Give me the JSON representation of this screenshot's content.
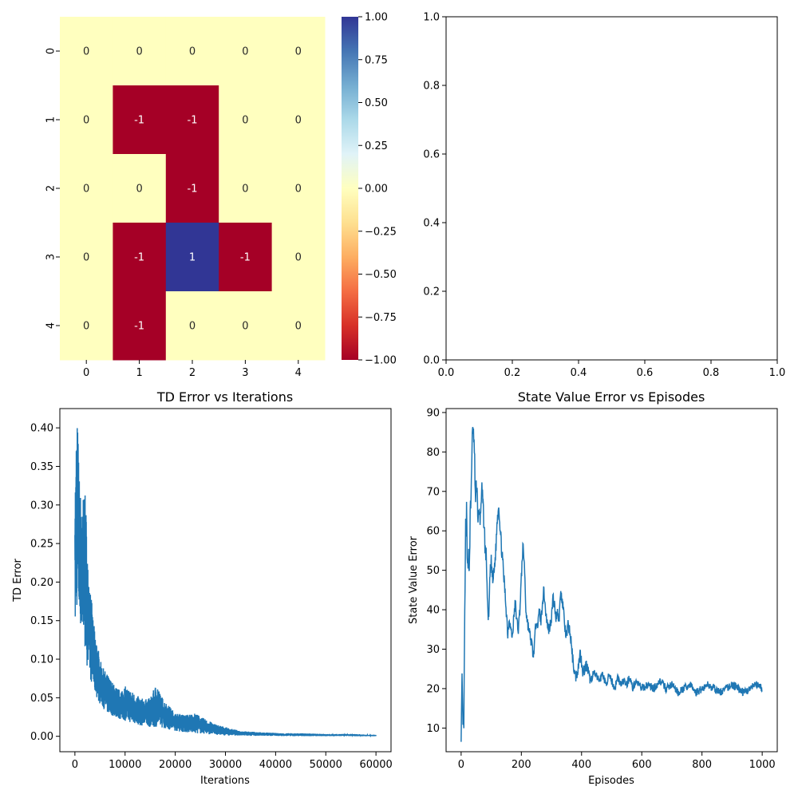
{
  "chart_data": [
    {
      "type": "heatmap",
      "title": "",
      "x_tick_labels": [
        "0",
        "1",
        "2",
        "3",
        "4"
      ],
      "y_tick_labels": [
        "0",
        "1",
        "2",
        "3",
        "4"
      ],
      "matrix": [
        [
          0,
          0,
          0,
          0,
          0
        ],
        [
          0,
          -1,
          -1,
          0,
          0
        ],
        [
          0,
          0,
          -1,
          0,
          0
        ],
        [
          0,
          -1,
          1,
          -1,
          0
        ],
        [
          0,
          -1,
          0,
          0,
          0
        ]
      ],
      "cell_labels": [
        [
          "0",
          "0",
          "0",
          "0",
          "0"
        ],
        [
          "0",
          "-1",
          "-1",
          "0",
          "0"
        ],
        [
          "0",
          "0",
          "-1",
          "0",
          "0"
        ],
        [
          "0",
          "-1",
          "1",
          "-1",
          "0"
        ],
        [
          "0",
          "-1",
          "0",
          "0",
          "0"
        ]
      ],
      "colormap": "RdYlBu",
      "vmin": -1,
      "vmax": 1,
      "colorbar_ticks": [
        "1.00",
        "0.75",
        "0.50",
        "0.25",
        "0.00",
        "−0.25",
        "−0.50",
        "−0.75",
        "−1.00"
      ],
      "colors": {
        "neg": "#a50026",
        "zero": "#ffffbf",
        "pos": "#313695"
      }
    },
    {
      "type": "line",
      "title": "",
      "xlim": [
        0,
        1
      ],
      "ylim": [
        0,
        1
      ],
      "x_ticks": [
        "0.0",
        "0.2",
        "0.4",
        "0.6",
        "0.8",
        "1.0"
      ],
      "y_ticks": [
        "0.0",
        "0.2",
        "0.4",
        "0.6",
        "0.8",
        "1.0"
      ],
      "series": []
    },
    {
      "type": "line",
      "title": "TD Error vs Iterations",
      "xlabel": "Iterations",
      "ylabel": "TD Error",
      "xlim": [
        -3000,
        63000
      ],
      "ylim": [
        -0.02,
        0.425
      ],
      "x_ticks": [
        "0",
        "10000",
        "20000",
        "30000",
        "40000",
        "50000",
        "60000"
      ],
      "y_ticks": [
        "0.00",
        "0.05",
        "0.10",
        "0.15",
        "0.20",
        "0.25",
        "0.30",
        "0.35",
        "0.40"
      ],
      "color": "#1f77b4",
      "series": [
        {
          "envelope": {
            "x": [
              0,
              150,
              300,
              500,
              700,
              900,
              1200,
              1500,
              1800,
              2200,
              2600,
              3000,
              3500,
              4000,
              4500,
              5000,
              5500,
              6000,
              6500,
              7000,
              8000,
              9000,
              10000,
              11000,
              12000,
              13000,
              14000,
              15000,
              16000,
              16500,
              17000,
              18000,
              19000,
              20000,
              22000,
              24000,
              26000,
              28000,
              30000,
              31000,
              33000,
              35000,
              38000,
              41000,
              45000,
              50000,
              55000,
              60000
            ],
            "low": [
              0.14,
              0.13,
              0.16,
              0.17,
              0.16,
              0.15,
              0.14,
              0.13,
              0.12,
              0.1,
              0.085,
              0.075,
              0.065,
              0.055,
              0.048,
              0.042,
              0.038,
              0.033,
              0.03,
              0.028,
              0.025,
              0.022,
              0.02,
              0.018,
              0.016,
              0.014,
              0.013,
              0.012,
              0.012,
              0.013,
              0.012,
              0.01,
              0.008,
              0.007,
              0.005,
              0.004,
              0.003,
              0.002,
              0.001,
              0.001,
              0.001,
              0.0005,
              0.0005,
              0.0003,
              0.0002,
              0.0001,
              0.0001,
              0.0001
            ],
            "high": [
              0.36,
              0.33,
              0.4,
              0.41,
              0.38,
              0.33,
              0.31,
              0.29,
              0.33,
              0.3,
              0.22,
              0.21,
              0.16,
              0.135,
              0.12,
              0.1,
              0.09,
              0.085,
              0.08,
              0.075,
              0.065,
              0.06,
              0.065,
              0.06,
              0.055,
              0.05,
              0.048,
              0.05,
              0.065,
              0.068,
              0.055,
              0.045,
              0.038,
              0.03,
              0.028,
              0.03,
              0.022,
              0.016,
              0.012,
              0.01,
              0.007,
              0.006,
              0.005,
              0.004,
              0.004,
              0.003,
              0.003,
              0.002
            ]
          }
        }
      ]
    },
    {
      "type": "line",
      "title": "State Value Error vs Episodes",
      "xlabel": "Episodes",
      "ylabel": "State Value Error",
      "xlim": [
        -50,
        1050
      ],
      "ylim": [
        4,
        91
      ],
      "x_ticks": [
        "0",
        "200",
        "400",
        "600",
        "800",
        "1000"
      ],
      "y_ticks": [
        "10",
        "20",
        "30",
        "40",
        "50",
        "60",
        "70",
        "80",
        "90"
      ],
      "color": "#1f77b4",
      "series": [
        {
          "x": [
            0,
            3,
            6,
            9,
            12,
            15,
            18,
            21,
            24,
            27,
            30,
            33,
            36,
            40,
            44,
            48,
            52,
            56,
            60,
            64,
            68,
            72,
            76,
            80,
            84,
            88,
            92,
            96,
            100,
            105,
            110,
            115,
            120,
            125,
            130,
            135,
            140,
            145,
            150,
            155,
            160,
            165,
            170,
            175,
            180,
            185,
            190,
            195,
            200,
            205,
            210,
            215,
            220,
            225,
            230,
            235,
            240,
            245,
            250,
            255,
            260,
            265,
            270,
            275,
            280,
            285,
            290,
            295,
            300,
            305,
            310,
            315,
            320,
            325,
            330,
            335,
            340,
            345,
            350,
            355,
            360,
            365,
            370,
            375,
            380,
            385,
            390,
            395,
            400,
            405,
            410,
            415,
            420,
            425,
            430,
            440,
            450,
            460,
            470,
            480,
            490,
            500,
            510,
            520,
            530,
            540,
            550,
            560,
            570,
            580,
            590,
            600,
            620,
            640,
            660,
            680,
            700,
            720,
            740,
            760,
            780,
            800,
            820,
            840,
            860,
            880,
            900,
            920,
            940,
            960,
            980,
            1000
          ],
          "y": [
            8,
            22,
            10.5,
            11,
            38,
            60,
            63,
            49,
            55,
            50,
            63,
            68,
            82,
            86,
            80,
            67,
            73,
            63,
            64,
            63,
            71,
            67,
            62,
            55,
            53,
            40,
            38,
            49,
            52,
            47,
            50,
            55,
            63,
            67,
            60,
            55,
            50,
            45,
            40,
            34,
            38,
            35,
            33,
            38,
            42,
            37,
            35,
            40,
            48,
            56,
            52,
            40,
            37,
            35,
            33,
            31,
            28,
            33,
            38,
            36,
            40,
            37,
            42,
            45,
            40,
            37,
            35,
            36,
            38,
            43,
            41,
            38,
            40,
            37,
            44,
            43,
            40,
            35,
            33,
            36,
            35,
            32,
            28,
            25,
            23,
            24,
            26,
            29,
            27,
            24,
            25,
            26,
            25,
            23,
            22,
            24,
            23,
            22,
            24,
            21,
            23,
            22,
            20,
            23,
            21,
            22,
            21,
            23,
            20,
            22,
            21,
            20,
            21,
            20,
            22,
            20,
            21,
            19,
            20,
            21,
            19,
            20,
            21,
            20,
            19,
            20,
            21,
            20,
            19,
            20,
            21,
            20
          ],
          "noise": [
            3,
            4,
            3,
            3,
            6,
            8,
            9,
            7,
            6,
            6,
            7,
            8,
            6,
            5,
            6,
            6,
            6,
            5,
            5,
            5,
            5,
            5,
            5,
            5,
            5,
            4,
            3,
            4,
            4,
            4,
            4,
            4,
            4,
            4,
            4,
            4,
            4,
            4,
            4,
            4,
            3,
            3,
            3,
            3,
            3,
            3,
            3,
            3,
            3,
            3,
            3,
            3,
            3,
            3,
            3,
            3,
            3,
            3,
            3,
            3,
            3,
            3,
            3,
            3,
            3,
            3,
            3,
            3,
            3,
            3,
            3,
            3,
            3,
            3,
            3,
            3,
            3,
            3,
            3,
            3,
            3,
            3,
            3,
            3,
            3,
            3,
            3,
            3,
            3,
            3,
            3,
            3,
            3,
            3,
            2,
            2,
            2,
            2,
            2,
            2,
            2,
            2,
            2,
            2,
            2,
            2,
            2,
            2,
            2,
            2,
            2,
            2,
            2,
            2,
            2,
            2,
            2,
            2,
            2,
            2,
            2,
            2,
            2,
            2,
            2,
            2,
            2,
            2,
            2,
            2,
            2,
            2
          ]
        }
      ]
    }
  ]
}
